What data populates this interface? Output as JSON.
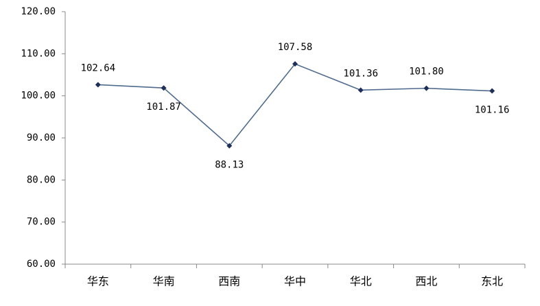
{
  "chart_data": {
    "type": "line",
    "categories": [
      "华东",
      "华南",
      "西南",
      "华中",
      "华北",
      "西北",
      "东北"
    ],
    "series": [
      {
        "color": "#4f6a8f",
        "values": [
          102.64,
          101.87,
          88.13,
          107.58,
          101.36,
          101.8,
          101.16
        ],
        "value_labels": [
          "102.64",
          "101.87",
          "88.13",
          "107.58",
          "101.36",
          "101.80",
          "101.16"
        ]
      }
    ],
    "ylim": [
      60,
      120
    ],
    "yticks": [
      {
        "value": 60,
        "label": "60.00"
      },
      {
        "value": 70,
        "label": "70.00"
      },
      {
        "value": 80,
        "label": "80.00"
      },
      {
        "value": 90,
        "label": "90.00"
      },
      {
        "value": 100,
        "label": "100.00"
      },
      {
        "value": 110,
        "label": "110.00"
      },
      {
        "value": 120,
        "label": "120.00"
      }
    ],
    "grid": false
  }
}
